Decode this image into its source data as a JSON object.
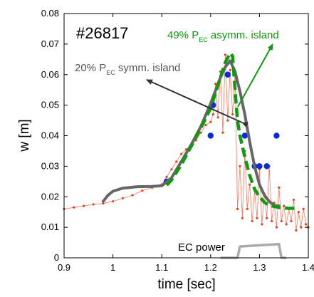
{
  "chart_data": {
    "type": "line",
    "xlabel": "time  [sec]",
    "ylabel": "w  [m]",
    "xlim": [
      0.9,
      1.4
    ],
    "ylim": [
      0,
      0.08
    ],
    "x_ticks": [
      "0.9",
      "1",
      "1.1",
      "1.2",
      "1.3",
      "1.4"
    ],
    "y_ticks": [
      "0",
      "0.01",
      "0.02",
      "0.03",
      "0.04",
      "0.05",
      "0.06",
      "0.07",
      "0.08"
    ],
    "grid": false,
    "annotations": {
      "shot": "#26817",
      "symm_prefix": "20% P",
      "symm_sub": "EC",
      "symm_suffix": " symm. island",
      "asymm_prefix": "49% P",
      "asymm_sub": "EC",
      "asymm_suffix": " asymm. island",
      "ec_power": "EC power"
    },
    "colors": {
      "symm_model": "#666666",
      "asymm_model": "#119911",
      "measured": "#e8401c",
      "points": "#0a2bd6",
      "ec_power": "#aaaaaa",
      "symm_arrow": "#333333",
      "asymm_arrow": "#119911"
    },
    "series": [
      {
        "style": "measured-red-dotted",
        "x": [
          0.9,
          0.92,
          0.94,
          0.96,
          0.98,
          1.0,
          1.02,
          1.04,
          1.06,
          1.08,
          1.1,
          1.11,
          1.12,
          1.13,
          1.14,
          1.15,
          1.16,
          1.17,
          1.18,
          1.19,
          1.2,
          1.205,
          1.21,
          1.215,
          1.22,
          1.225,
          1.23,
          1.235,
          1.24,
          1.245,
          1.25,
          1.255,
          1.26,
          1.265,
          1.27,
          1.275,
          1.28,
          1.285,
          1.29,
          1.295,
          1.3,
          1.305,
          1.31,
          1.315,
          1.32,
          1.325,
          1.33,
          1.335,
          1.34,
          1.345,
          1.35,
          1.355,
          1.36,
          1.365,
          1.37,
          1.375,
          1.38,
          1.385,
          1.39,
          1.395,
          1.4
        ],
        "y": [
          0.016,
          0.0165,
          0.017,
          0.0175,
          0.0178,
          0.0185,
          0.0195,
          0.0205,
          0.022,
          0.023,
          0.024,
          0.0265,
          0.029,
          0.0315,
          0.034,
          0.0355,
          0.037,
          0.0385,
          0.041,
          0.0435,
          0.0445,
          0.047,
          0.057,
          0.046,
          0.061,
          0.041,
          0.0665,
          0.045,
          0.0615,
          0.047,
          0.061,
          0.016,
          0.03,
          0.013,
          0.035,
          0.016,
          0.024,
          0.012,
          0.022,
          0.013,
          0.029,
          0.011,
          0.021,
          0.013,
          0.03,
          0.012,
          0.018,
          0.01,
          0.023,
          0.012,
          0.017,
          0.011,
          0.016,
          0.012,
          0.019,
          0.009,
          0.015,
          0.01,
          0.016,
          0.011,
          0.01
        ]
      },
      {
        "style": "points-blue",
        "x": [
          1.11,
          1.2,
          1.205,
          1.235,
          1.27,
          1.29,
          1.3,
          1.315,
          1.335
        ],
        "y": [
          0.025,
          0.04,
          0.05,
          0.06,
          0.04,
          0.03,
          0.03,
          0.03,
          0.04
        ]
      },
      {
        "name": "20% PEC symm. island",
        "style": "model-gray-solid",
        "x": [
          0.98,
          0.99,
          1.0,
          1.02,
          1.05,
          1.08,
          1.1,
          1.12,
          1.14,
          1.16,
          1.18,
          1.2,
          1.22,
          1.23,
          1.24,
          1.25,
          1.26,
          1.27,
          1.28,
          1.29,
          1.3,
          1.31,
          1.32,
          1.33,
          1.34
        ],
        "y": [
          0.0185,
          0.0205,
          0.0218,
          0.0228,
          0.0233,
          0.0234,
          0.0236,
          0.0262,
          0.0315,
          0.037,
          0.043,
          0.0505,
          0.059,
          0.0625,
          0.0645,
          0.061,
          0.0545,
          0.047,
          0.038,
          0.03,
          0.024,
          0.0205,
          0.0185,
          0.0172,
          0.017
        ]
      },
      {
        "name": "49% PEC asymm. island",
        "style": "model-green-dashed",
        "x": [
          1.11,
          1.12,
          1.14,
          1.16,
          1.18,
          1.2,
          1.21,
          1.22,
          1.23,
          1.24,
          1.245,
          1.25,
          1.255,
          1.26,
          1.27,
          1.28,
          1.29,
          1.3,
          1.31,
          1.32,
          1.34,
          1.36,
          1.38
        ],
        "y": [
          0.0238,
          0.0255,
          0.0305,
          0.0365,
          0.0425,
          0.049,
          0.054,
          0.059,
          0.064,
          0.067,
          0.066,
          0.055,
          0.045,
          0.04,
          0.033,
          0.027,
          0.0225,
          0.02,
          0.0182,
          0.0172,
          0.0165,
          0.0162,
          0.0162
        ]
      },
      {
        "name": "EC power",
        "style": "ec-power-gray",
        "x": [
          1.22,
          1.255,
          1.26,
          1.34,
          1.345,
          1.355
        ],
        "y": [
          0.0,
          0.0,
          0.0037,
          0.0045,
          0.0,
          0.0
        ]
      }
    ]
  }
}
